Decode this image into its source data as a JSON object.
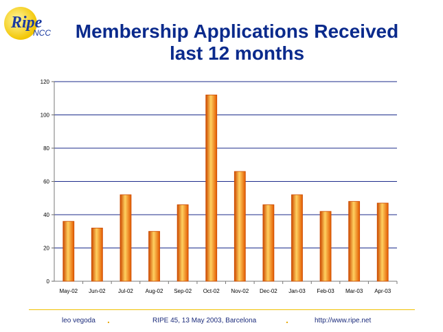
{
  "logo": {
    "word": "Ripe",
    "sub": "NCC"
  },
  "title": {
    "line1": "Membership Applications Received",
    "line2": "last 12 months"
  },
  "chart_data": {
    "type": "bar",
    "categories": [
      "May-02",
      "Jun-02",
      "Jul-02",
      "Aug-02",
      "Sep-02",
      "Oct-02",
      "Nov-02",
      "Dec-02",
      "Jan-03",
      "Feb-03",
      "Mar-03",
      "Apr-03"
    ],
    "values": [
      36,
      32,
      52,
      30,
      46,
      112,
      66,
      46,
      52,
      42,
      48,
      47
    ],
    "ylim": [
      0,
      120
    ],
    "yticks": [
      0,
      20,
      40,
      60,
      80,
      100,
      120
    ],
    "grid": true,
    "bar_colors": {
      "edge": "#cc4a00",
      "center": "#ffd060",
      "dark": "#e25a00"
    },
    "grid_color": "#1a2a8a"
  },
  "footer": {
    "left": "leo vegoda",
    "center": "RIPE 45, 13 May 2003, Barcelona",
    "right": "http://www.ripe.net",
    "separator": "."
  }
}
